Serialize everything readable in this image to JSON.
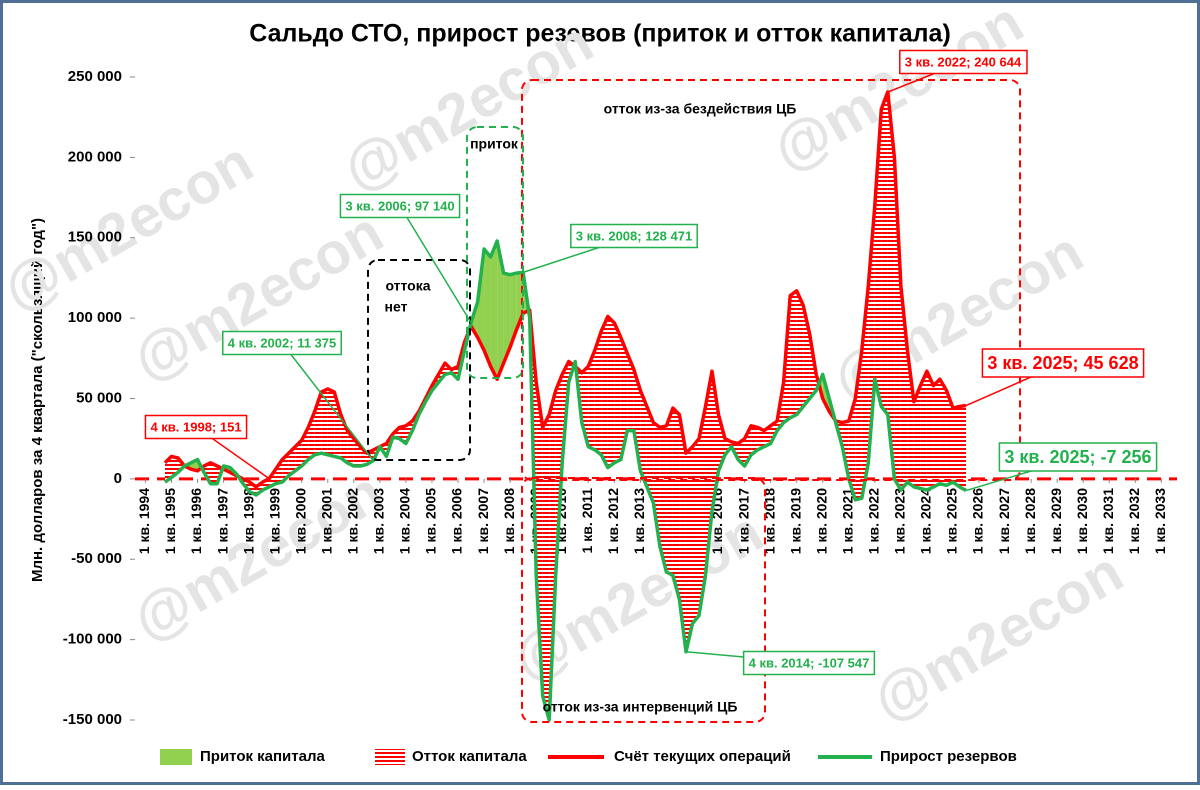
{
  "chart_data": {
    "type": "line",
    "title": "Сальдо СТО, прирост резевов (приток и отток капитала)",
    "y_label": "Млн. долларов за 4 квартала (\"скользящий год\")",
    "watermark": "@m2econ",
    "xlim": [
      1993.6,
      2033.6
    ],
    "xticks": [
      {
        "value": 1994,
        "label": "1 кв. 1994"
      },
      {
        "value": 1995,
        "label": "1 кв. 1995"
      },
      {
        "value": 1996,
        "label": "1 кв. 1996"
      },
      {
        "value": 1997,
        "label": "1 кв. 1997"
      },
      {
        "value": 1998,
        "label": "1 кв. 1998"
      },
      {
        "value": 1999,
        "label": "1 кв. 1999"
      },
      {
        "value": 2000,
        "label": "1 кв. 2000"
      },
      {
        "value": 2001,
        "label": "1 кв. 2001"
      },
      {
        "value": 2002,
        "label": "1 кв. 2002"
      },
      {
        "value": 2003,
        "label": "1 кв. 2003"
      },
      {
        "value": 2004,
        "label": "1 кв. 2004"
      },
      {
        "value": 2005,
        "label": "1 кв. 2005"
      },
      {
        "value": 2006,
        "label": "1 кв. 2006"
      },
      {
        "value": 2007,
        "label": "1 кв. 2007"
      },
      {
        "value": 2008,
        "label": "1 кв. 2008"
      },
      {
        "value": 2009,
        "label": "1 кв. 2009"
      },
      {
        "value": 2010,
        "label": "1 кв. 2010"
      },
      {
        "value": 2011,
        "label": "1 кв. 2011"
      },
      {
        "value": 2012,
        "label": "1 кв. 2012"
      },
      {
        "value": 2013,
        "label": "1 кв. 2013"
      },
      {
        "value": 2014,
        "label": "1 кв. 2014"
      },
      {
        "value": 2015,
        "label": "1 кв. 2015"
      },
      {
        "value": 2016,
        "label": "1 кв. 2016"
      },
      {
        "value": 2017,
        "label": "1 кв. 2017"
      },
      {
        "value": 2018,
        "label": "1 кв. 2018"
      },
      {
        "value": 2019,
        "label": "1 кв. 2019"
      },
      {
        "value": 2020,
        "label": "1 кв. 2020"
      },
      {
        "value": 2021,
        "label": "1 кв. 2021"
      },
      {
        "value": 2022,
        "label": "1 кв. 2022"
      },
      {
        "value": 2023,
        "label": "1 кв. 2023"
      },
      {
        "value": 2024,
        "label": "1 кв. 2024"
      },
      {
        "value": 2025,
        "label": "1 кв. 2025"
      },
      {
        "value": 2026,
        "label": "1 кв. 2026"
      },
      {
        "value": 2027,
        "label": "1 кв. 2027"
      },
      {
        "value": 2028,
        "label": "1 кв. 2028"
      },
      {
        "value": 2029,
        "label": "1 кв. 2029"
      },
      {
        "value": 2030,
        "label": "1 кв. 2030"
      },
      {
        "value": 2031,
        "label": "1 кв. 2031"
      },
      {
        "value": 2032,
        "label": "1 кв. 2032"
      },
      {
        "value": 2033,
        "label": "1 кв. 2033"
      }
    ],
    "ylim": [
      -150000,
      250000
    ],
    "yticks": [
      {
        "value": -150000,
        "label": "-150 000"
      },
      {
        "value": -100000,
        "label": "-100 000"
      },
      {
        "value": -50000,
        "label": "-50 000"
      },
      0,
      {
        "value": 50000,
        "label": "50 000"
      },
      {
        "value": 100000,
        "label": "100 000"
      },
      {
        "value": 150000,
        "label": "150 000"
      },
      {
        "value": 200000,
        "label": "200 000"
      },
      {
        "value": 250000,
        "label": "250 000"
      }
    ],
    "x": [
      1994.75,
      1995,
      1995.25,
      1995.5,
      1995.75,
      1996,
      1996.25,
      1996.5,
      1996.75,
      1997,
      1997.25,
      1997.5,
      1997.75,
      1998,
      1998.25,
      1998.5,
      1998.75,
      1999,
      1999.25,
      1999.5,
      1999.75,
      2000,
      2000.25,
      2000.5,
      2000.75,
      2001,
      2001.25,
      2001.5,
      2001.75,
      2002,
      2002.25,
      2002.5,
      2002.75,
      2003,
      2003.25,
      2003.5,
      2003.75,
      2004,
      2004.25,
      2004.5,
      2004.75,
      2005,
      2005.25,
      2005.5,
      2005.75,
      2006,
      2006.25,
      2006.5,
      2006.75,
      2007,
      2007.25,
      2007.5,
      2007.75,
      2008,
      2008.25,
      2008.5,
      2008.75,
      2009,
      2009.25,
      2009.5,
      2009.75,
      2010,
      2010.25,
      2010.5,
      2010.75,
      2011,
      2011.25,
      2011.5,
      2011.75,
      2012,
      2012.25,
      2012.5,
      2012.75,
      2013,
      2013.25,
      2013.5,
      2013.75,
      2014,
      2014.25,
      2014.5,
      2014.75,
      2015,
      2015.25,
      2015.5,
      2015.75,
      2016,
      2016.25,
      2016.5,
      2016.75,
      2017,
      2017.25,
      2017.5,
      2017.75,
      2018,
      2018.25,
      2018.5,
      2018.75,
      2019,
      2019.25,
      2019.5,
      2019.75,
      2020,
      2020.25,
      2020.5,
      2020.75,
      2021,
      2021.25,
      2021.5,
      2021.75,
      2022,
      2022.25,
      2022.5,
      2022.75,
      2023,
      2023.25,
      2023.5,
      2023.75,
      2024,
      2024.25,
      2024.5,
      2024.75,
      2025,
      2025.25,
      2025.5
    ],
    "series": [
      {
        "name": "Счёт текущих операций",
        "color": "#ff0000",
        "values": [
          10000,
          14000,
          13000,
          8000,
          6000,
          5000,
          8000,
          10000,
          8000,
          6000,
          4000,
          2000,
          0,
          -2000,
          -5000,
          -2000,
          151,
          6000,
          12000,
          16000,
          20000,
          24000,
          32000,
          42000,
          54000,
          56000,
          54000,
          40000,
          30000,
          25000,
          20000,
          16000,
          18000,
          20000,
          22000,
          28000,
          32000,
          33000,
          36000,
          42000,
          50000,
          58000,
          65000,
          72000,
          68000,
          70000,
          85000,
          95000,
          88000,
          80000,
          70000,
          62000,
          72000,
          82000,
          93000,
          103000,
          105000,
          60000,
          32000,
          40000,
          55000,
          65000,
          73000,
          70000,
          66000,
          70000,
          80000,
          92000,
          101000,
          97000,
          88000,
          78000,
          68000,
          55000,
          45000,
          35000,
          32000,
          33000,
          44000,
          40000,
          16000,
          20000,
          25000,
          45000,
          67000,
          40000,
          25000,
          23000,
          22000,
          25000,
          33000,
          32000,
          30000,
          33000,
          36000,
          60000,
          114000,
          117000,
          108000,
          90000,
          65000,
          50000,
          42000,
          36000,
          35000,
          36000,
          50000,
          80000,
          120000,
          170000,
          230000,
          240644,
          200000,
          120000,
          80000,
          48000,
          58000,
          67000,
          58000,
          62000,
          55000,
          44000,
          45000,
          45628
        ]
      },
      {
        "name": "Прирост резервов",
        "color": "#22b14c",
        "values": [
          -2000,
          1000,
          4000,
          8000,
          10000,
          12000,
          4000,
          -3000,
          -3000,
          8000,
          7000,
          3000,
          -3000,
          -8000,
          -10000,
          -7000,
          -5000,
          -3000,
          -2000,
          2000,
          5000,
          8000,
          12000,
          15000,
          16000,
          15000,
          14000,
          13000,
          10000,
          8000,
          8000,
          9000,
          11375,
          20000,
          14000,
          26000,
          25000,
          22000,
          30000,
          40000,
          48000,
          55000,
          60000,
          65000,
          66000,
          62000,
          80000,
          97140,
          110000,
          143000,
          138000,
          148000,
          128000,
          127000,
          128000,
          128471,
          100000,
          -60000,
          -135000,
          -150000,
          -60000,
          10000,
          60000,
          73000,
          35000,
          20000,
          18000,
          15000,
          7000,
          10000,
          12000,
          30000,
          30000,
          5000,
          -5000,
          -15000,
          -42000,
          -58000,
          -60000,
          -75000,
          -107547,
          -90000,
          -85000,
          -60000,
          -20000,
          5000,
          15000,
          20000,
          12000,
          8000,
          15000,
          18000,
          20000,
          22000,
          30000,
          35000,
          38000,
          40000,
          45000,
          50000,
          55000,
          65000,
          50000,
          35000,
          20000,
          0,
          -13000,
          -12000,
          10000,
          62000,
          45000,
          40000,
          0,
          -7000,
          -2000,
          -5000,
          -6000,
          -7000,
          -5000,
          -3000,
          -4000,
          -2000,
          -5000,
          -7256
        ]
      }
    ],
    "fills": [
      {
        "name": "Приток капитала",
        "color": "#92d050"
      },
      {
        "name": "Отток капитала",
        "color": "#ff0000"
      }
    ],
    "annotations": [
      {
        "text": "4 кв. 1998; 151",
        "color": "#ff0000"
      },
      {
        "text": "4 кв. 2002; 11 375",
        "color": "#22b14c"
      },
      {
        "text": "3 кв. 2006; 97 140",
        "color": "#22b14c"
      },
      {
        "text": "3 кв. 2008; 128 471",
        "color": "#22b14c"
      },
      {
        "text": "3 кв. 2022; 240 644",
        "color": "#ff0000"
      },
      {
        "text": "3 кв. 2025; 45 628",
        "color": "#ff0000"
      },
      {
        "text": "3 кв. 2025; -7 256",
        "color": "#22b14c"
      },
      {
        "text": "4 кв. 2014; -107 547",
        "color": "#22b14c"
      }
    ],
    "regions": [
      "отток из-за бездействия ЦБ",
      "приток",
      "оттока",
      "нет",
      "отток из-за интервенций ЦБ"
    ]
  }
}
